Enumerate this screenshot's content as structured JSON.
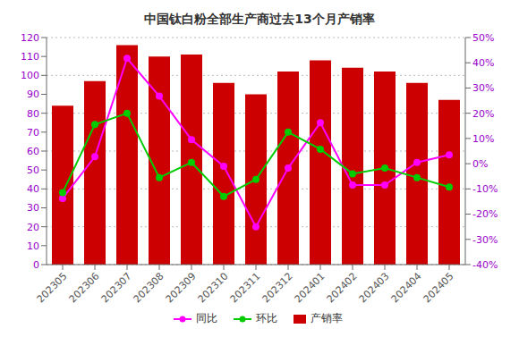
{
  "chart_data": {
    "type": "bar",
    "title": "中国钛白粉全部生产商过去13个月产销率",
    "categories": [
      "202305",
      "202306",
      "202307",
      "202308",
      "202309",
      "202310",
      "202311",
      "202312",
      "202401",
      "202402",
      "202403",
      "202404",
      "202405"
    ],
    "series": [
      {
        "name": "同比",
        "type": "line",
        "color": "#ff00ff",
        "marker": "circle",
        "values": [
          35,
          57,
          109,
          89,
          66,
          52,
          20,
          51,
          75,
          42,
          42,
          54,
          58
        ]
      },
      {
        "name": "环比",
        "type": "line",
        "color": "#00cc00",
        "marker": "circle",
        "values": [
          38,
          74,
          80,
          46,
          54,
          36,
          45,
          70,
          61,
          48,
          51,
          46,
          41
        ]
      },
      {
        "name": "产销率",
        "type": "bar",
        "color": "#cc0000",
        "values": [
          84,
          97,
          116,
          110,
          111,
          96,
          90,
          102,
          108,
          104,
          102,
          96,
          87
        ]
      }
    ],
    "ylim": [
      0,
      120
    ],
    "yticks": [
      0,
      10,
      20,
      30,
      40,
      50,
      60,
      70,
      80,
      90,
      100,
      110,
      120
    ],
    "y2lim": [
      -40,
      50
    ],
    "y2ticks": [
      {
        "value": -40,
        "label": "-40%"
      },
      {
        "value": -30,
        "label": "-30%"
      },
      {
        "value": -20,
        "label": "-20%"
      },
      {
        "value": -10,
        "label": "-10%"
      },
      {
        "value": 0,
        "label": "0%"
      },
      {
        "value": 10,
        "label": "10%"
      },
      {
        "value": 20,
        "label": "20%"
      },
      {
        "value": 30,
        "label": "30%"
      },
      {
        "value": 40,
        "label": "40%"
      },
      {
        "value": 50,
        "label": "50%"
      }
    ],
    "grid": true,
    "legend": "bottom"
  }
}
